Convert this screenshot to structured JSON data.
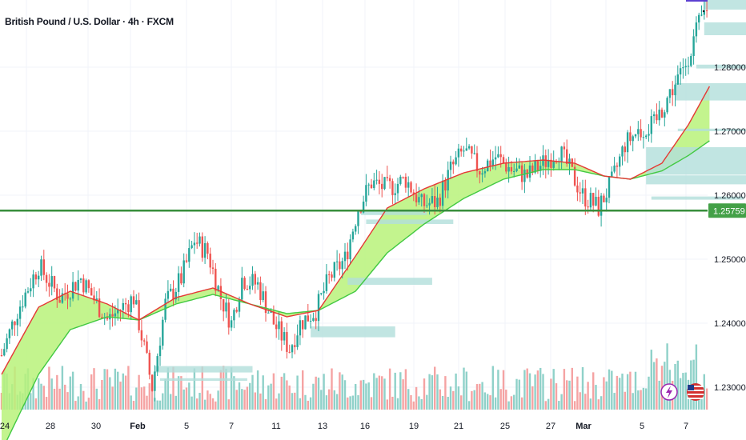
{
  "header": {
    "title": "British Pound / U.S. Dollar · 4h · FXCM"
  },
  "colors": {
    "up": "#26a69a",
    "down": "#ef5350",
    "up_volume": "#8fd1c9",
    "down_volume": "#f5a3a3",
    "support_line": "#388e3c",
    "ribbon_fill": "#b8f27a",
    "ma_fast": "#e53935",
    "ma_slow": "#43c943",
    "zone": "#b2dfdb",
    "price_tag": "#43a047",
    "grid": "#f0f3fa"
  },
  "icons": {
    "lightning": "lightning-icon",
    "flag": "us-flag-icon"
  },
  "chart_data": {
    "type": "candlestick",
    "symbol": "GBPUSD",
    "timeframe": "4h",
    "ylim": [
      1.2265,
      1.2905
    ],
    "y_ticks": [
      "1.23000",
      "1.24000",
      "1.25000",
      "1.26000",
      "1.27000",
      "1.28000"
    ],
    "x_ticks": [
      "24",
      "28",
      "30",
      "Feb",
      "5",
      "7",
      "11",
      "13",
      "16",
      "19",
      "21",
      "25",
      "27",
      "Mar",
      "5",
      "7"
    ],
    "x_ticks_bold": [
      "Feb",
      "Mar"
    ],
    "current_price": "1.25759",
    "support_level": 1.25759,
    "ohlc_anchors": [
      [
        0,
        1.235
      ],
      [
        6,
        1.242
      ],
      [
        14,
        1.249
      ],
      [
        22,
        1.244
      ],
      [
        30,
        1.247
      ],
      [
        40,
        1.2405
      ],
      [
        50,
        1.244
      ],
      [
        57,
        1.23
      ],
      [
        62,
        1.243
      ],
      [
        68,
        1.247
      ],
      [
        73,
        1.253
      ],
      [
        78,
        1.251
      ],
      [
        83,
        1.244
      ],
      [
        87,
        1.24
      ],
      [
        91,
        1.247
      ],
      [
        97,
        1.246
      ],
      [
        103,
        1.24
      ],
      [
        109,
        1.236
      ],
      [
        113,
        1.24
      ],
      [
        119,
        1.242
      ],
      [
        124,
        1.247
      ],
      [
        130,
        1.25
      ],
      [
        135,
        1.258
      ],
      [
        140,
        1.262
      ],
      [
        146,
        1.261
      ],
      [
        153,
        1.2625
      ],
      [
        159,
        1.2585
      ],
      [
        165,
        1.259
      ],
      [
        170,
        1.264
      ],
      [
        175,
        1.267
      ],
      [
        181,
        1.264
      ],
      [
        187,
        1.266
      ],
      [
        193,
        1.264
      ],
      [
        199,
        1.263
      ],
      [
        205,
        1.265
      ],
      [
        211,
        1.267
      ],
      [
        215,
        1.264
      ],
      [
        220,
        1.26
      ],
      [
        226,
        1.258
      ],
      [
        231,
        1.262
      ],
      [
        236,
        1.268
      ],
      [
        241,
        1.27
      ],
      [
        247,
        1.271
      ],
      [
        253,
        1.276
      ],
      [
        258,
        1.2795
      ],
      [
        263,
        1.2855
      ],
      [
        267,
        1.2895
      ]
    ],
    "ma_fast": [
      [
        0,
        1.232
      ],
      [
        14,
        1.2425
      ],
      [
        26,
        1.245
      ],
      [
        40,
        1.243
      ],
      [
        52,
        1.2405
      ],
      [
        66,
        1.244
      ],
      [
        80,
        1.2455
      ],
      [
        94,
        1.243
      ],
      [
        108,
        1.241
      ],
      [
        120,
        1.242
      ],
      [
        134,
        1.2505
      ],
      [
        146,
        1.258
      ],
      [
        160,
        1.261
      ],
      [
        175,
        1.2635
      ],
      [
        190,
        1.265
      ],
      [
        205,
        1.2655
      ],
      [
        217,
        1.265
      ],
      [
        228,
        1.263
      ],
      [
        238,
        1.2625
      ],
      [
        250,
        1.265
      ],
      [
        260,
        1.271
      ],
      [
        268,
        1.277
      ]
    ],
    "ma_slow": [
      [
        0,
        1.22
      ],
      [
        14,
        1.232
      ],
      [
        26,
        1.239
      ],
      [
        40,
        1.241
      ],
      [
        52,
        1.2405
      ],
      [
        66,
        1.243
      ],
      [
        80,
        1.2445
      ],
      [
        94,
        1.243
      ],
      [
        108,
        1.2415
      ],
      [
        120,
        1.242
      ],
      [
        134,
        1.245
      ],
      [
        146,
        1.251
      ],
      [
        160,
        1.2555
      ],
      [
        175,
        1.2595
      ],
      [
        190,
        1.2625
      ],
      [
        205,
        1.264
      ],
      [
        217,
        1.264
      ],
      [
        228,
        1.263
      ],
      [
        238,
        1.2625
      ],
      [
        250,
        1.2638
      ],
      [
        260,
        1.2662
      ],
      [
        268,
        1.2685
      ]
    ],
    "zones": [
      {
        "x0": 138,
        "x1": 171,
        "y0": 1.2555,
        "y1": 1.2562
      },
      {
        "x0": 136,
        "x1": 161,
        "y0": 1.2569,
        "y1": 1.2575
      },
      {
        "x0": 131,
        "x1": 163,
        "y0": 1.246,
        "y1": 1.2471
      },
      {
        "x0": 117,
        "x1": 149,
        "y0": 1.2378,
        "y1": 1.2395
      },
      {
        "x0": 58,
        "x1": 95,
        "y0": 1.2323,
        "y1": 1.2333
      },
      {
        "x0": 60,
        "x1": 93,
        "y0": 1.231,
        "y1": 1.2314
      },
      {
        "x0": 244,
        "x1": 283,
        "y0": 1.2632,
        "y1": 1.2675
      },
      {
        "x0": 244,
        "x1": 285,
        "y0": 1.2617,
        "y1": 1.2631
      },
      {
        "x0": 246,
        "x1": 281,
        "y0": 1.2593,
        "y1": 1.2598
      },
      {
        "x0": 255,
        "x1": 291,
        "y0": 1.2748,
        "y1": 1.2775
      },
      {
        "x0": 256,
        "x1": 292,
        "y0": 1.27,
        "y1": 1.2704
      },
      {
        "x0": 263,
        "x1": 292,
        "y0": 1.2798,
        "y1": 1.2804
      },
      {
        "x0": 266,
        "x1": 291,
        "y0": 1.285,
        "y1": 1.287
      },
      {
        "x0": 266,
        "x1": 291,
        "y0": 1.289,
        "y1": 1.2905
      }
    ]
  }
}
